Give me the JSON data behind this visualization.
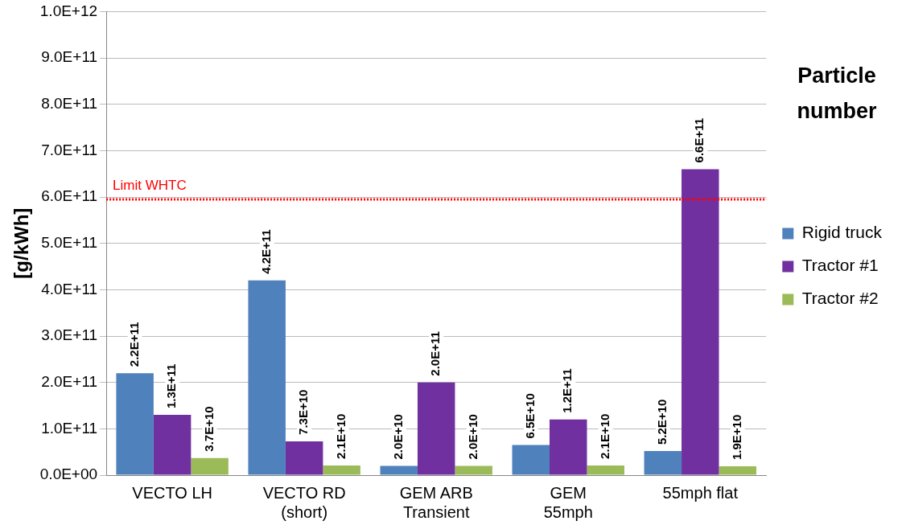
{
  "chart_data": {
    "type": "bar",
    "title": "Particle number",
    "ylabel": "[g/kWh]",
    "categories": [
      "VECTO LH",
      "VECTO RD\n(short)",
      "GEM ARB\nTransient",
      "GEM\n55mph",
      "55mph flat"
    ],
    "series": [
      {
        "name": "Rigid truck",
        "color": "#4f81bd",
        "values": [
          220000000000.0,
          420000000000.0,
          20000000000.0,
          65000000000.0,
          52000000000.0
        ],
        "value_labels": [
          "2.2E+11",
          "4.2E+11",
          "2.0E+10",
          "6.5E+10",
          "5.2E+10"
        ]
      },
      {
        "name": "Tractor #1",
        "color": "#7030a0",
        "values": [
          130000000000.0,
          73000000000.0,
          200000000000.0,
          120000000000.0,
          660000000000.0
        ],
        "value_labels": [
          "1.3E+11",
          "7.3E+10",
          "2.0E+11",
          "1.2E+11",
          "6.6E+11"
        ]
      },
      {
        "name": "Tractor #2",
        "color": "#9bbb59",
        "values": [
          37000000000.0,
          21000000000.0,
          20000000000.0,
          21000000000.0,
          19000000000.0
        ],
        "value_labels": [
          "3.7E+10",
          "2.1E+10",
          "2.0E+10",
          "2.1E+10",
          "1.9E+10"
        ]
      }
    ],
    "ylim": [
      0,
      1000000000000.0
    ],
    "yticks": [
      {
        "value": 0,
        "label": "0.0E+00"
      },
      {
        "value": 100000000000.0,
        "label": "1.0E+11"
      },
      {
        "value": 200000000000.0,
        "label": "2.0E+11"
      },
      {
        "value": 300000000000.0,
        "label": "3.0E+11"
      },
      {
        "value": 400000000000.0,
        "label": "4.0E+11"
      },
      {
        "value": 500000000000.0,
        "label": "5.0E+11"
      },
      {
        "value": 600000000000.0,
        "label": "6.0E+11"
      },
      {
        "value": 700000000000.0,
        "label": "7.0E+11"
      },
      {
        "value": 800000000000.0,
        "label": "8.0E+11"
      },
      {
        "value": 900000000000.0,
        "label": "9.0E+11"
      },
      {
        "value": 1000000000000.0,
        "label": "1.0E+12"
      }
    ],
    "ref_lines": [
      {
        "axis": "y",
        "value": 595000000000.0,
        "label": "Limit WHTC",
        "color": "#ff0000",
        "line_style": "dotted"
      }
    ],
    "grid": "y",
    "legend": "right"
  }
}
